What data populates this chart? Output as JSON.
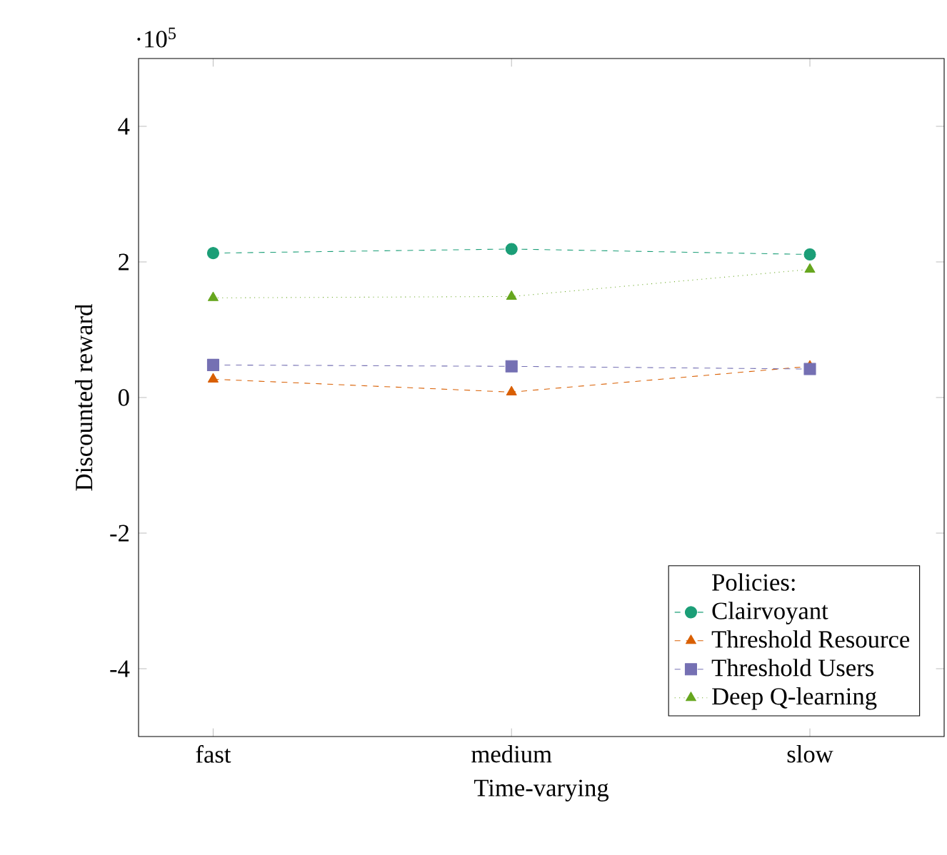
{
  "chart_data": {
    "type": "line",
    "xlabel": "Time-varying",
    "ylabel": "Discounted reward",
    "annotations": [
      "·10$^{5}$"
    ],
    "categories": [
      "fast",
      "medium",
      "slow"
    ],
    "ylim": [
      -5,
      5
    ],
    "yticks": [
      -4,
      -2,
      0,
      2,
      4
    ],
    "legend": "bottom right",
    "legend_title": "Policies:",
    "grid": false,
    "series": [
      {
        "name": "Clairvoyant",
        "color": "#1b9e77",
        "marker": "circle",
        "line_style": "dashed",
        "values": [
          2.13,
          2.19,
          2.11
        ]
      },
      {
        "name": "Threshold Resource",
        "color": "#d95f02",
        "marker": "triangle",
        "line_style": "dashed",
        "values": [
          0.27,
          0.08,
          0.46
        ]
      },
      {
        "name": "Threshold Users",
        "color": "#7570b3",
        "marker": "square",
        "line_style": "dashed",
        "values": [
          0.48,
          0.46,
          0.42
        ]
      },
      {
        "name": "Deep Q-learning",
        "color": "#66a61e",
        "marker": "triangle",
        "line_style": "dotted",
        "values": [
          1.47,
          1.49,
          1.89
        ]
      }
    ]
  }
}
